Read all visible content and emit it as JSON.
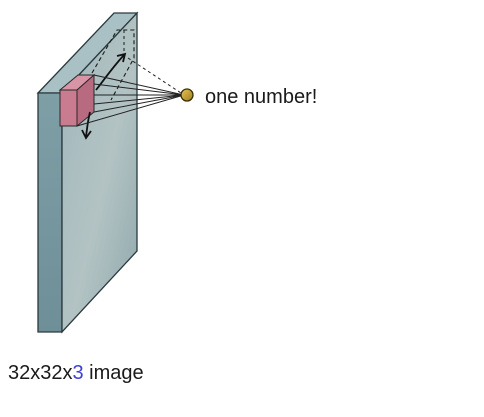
{
  "annotation": {
    "text": "one number!"
  },
  "caption": {
    "prefix": "32x32x",
    "depth": "3",
    "suffix": " image",
    "depth_color": "#3f3fd8"
  },
  "colors": {
    "volume_front": "#8fa4a8",
    "volume_side": "#7f9ea6",
    "volume_top": "#a3bcbf",
    "filter": "#c4798d",
    "neuron": "#c9a227"
  }
}
